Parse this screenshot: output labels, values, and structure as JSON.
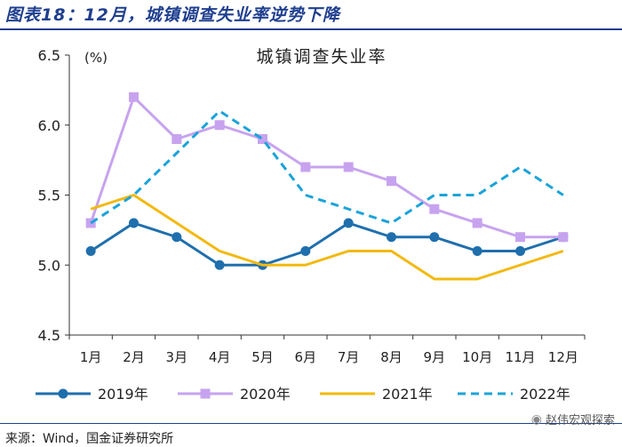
{
  "figure_title": "图表18：12月，城镇调查失业率逆势下降",
  "source": "来源：Wind，国金证券研究所",
  "watermark": "赵伟宏观探索",
  "chart_data": {
    "type": "line",
    "title": "城镇调查失业率",
    "unit_label": "(%)",
    "categories": [
      "1月",
      "2月",
      "3月",
      "4月",
      "5月",
      "6月",
      "7月",
      "8月",
      "9月",
      "10月",
      "11月",
      "12月"
    ],
    "ylim": [
      4.5,
      6.5
    ],
    "yticks": [
      4.5,
      5.0,
      5.5,
      6.0,
      6.5
    ],
    "ytick_labels": [
      "4.5",
      "5.0",
      "5.5",
      "6.0",
      "6.5"
    ],
    "grid": false,
    "legend_position": "bottom",
    "series": [
      {
        "name": "2019年",
        "values": [
          5.1,
          5.3,
          5.2,
          5.0,
          5.0,
          5.1,
          5.3,
          5.2,
          5.2,
          5.1,
          5.1,
          5.2
        ],
        "color": "#1f6fad",
        "marker": "circle",
        "dash": "solid"
      },
      {
        "name": "2020年",
        "values": [
          5.3,
          6.2,
          5.9,
          6.0,
          5.9,
          5.7,
          5.7,
          5.6,
          5.4,
          5.3,
          5.2,
          5.2
        ],
        "color": "#c7a3ef",
        "marker": "square",
        "dash": "solid"
      },
      {
        "name": "2021年",
        "values": [
          5.4,
          5.5,
          5.3,
          5.1,
          5.0,
          5.0,
          5.1,
          5.1,
          4.9,
          4.9,
          5.0,
          5.1
        ],
        "color": "#f2b90f",
        "marker": "none",
        "dash": "solid"
      },
      {
        "name": "2022年",
        "values": [
          5.3,
          5.5,
          5.8,
          6.1,
          5.9,
          5.5,
          5.4,
          5.3,
          5.5,
          5.5,
          5.7,
          5.5
        ],
        "color": "#1aa3d9",
        "marker": "none",
        "dash": "dashed"
      }
    ]
  }
}
